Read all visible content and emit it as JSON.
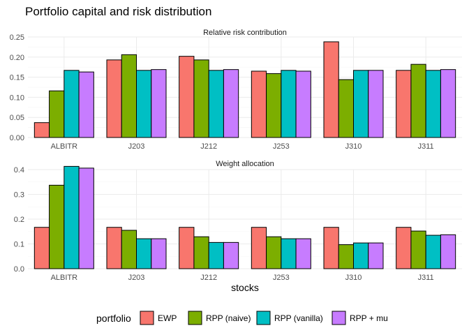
{
  "title": "Portfolio capital and risk distribution",
  "legend": {
    "title": "portfolio",
    "position": "bottom",
    "entries": [
      {
        "name": "EWP",
        "color": "#F8766D"
      },
      {
        "name": "RPP (naive)",
        "color": "#7CAE00"
      },
      {
        "name": "RPP (vanilla)",
        "color": "#00BFC4"
      },
      {
        "name": "RPP + mu",
        "color": "#C77CFF"
      }
    ]
  },
  "chart_data": [
    {
      "type": "bar",
      "facet": "Relative risk contribution",
      "categories": [
        "ALBITR",
        "J203",
        "J212",
        "J253",
        "J310",
        "J311"
      ],
      "xlabel": "",
      "ylabel": "",
      "ylim": [
        0,
        0.25
      ],
      "yticks": [
        "0.00",
        "0.05",
        "0.10",
        "0.15",
        "0.20",
        "0.25"
      ],
      "grid": true,
      "series": [
        {
          "name": "EWP",
          "values": [
            0.037,
            0.193,
            0.202,
            0.165,
            0.238,
            0.167
          ]
        },
        {
          "name": "RPP (naive)",
          "values": [
            0.116,
            0.206,
            0.193,
            0.159,
            0.144,
            0.182
          ]
        },
        {
          "name": "RPP (vanilla)",
          "values": [
            0.167,
            0.167,
            0.167,
            0.167,
            0.167,
            0.167
          ]
        },
        {
          "name": "RPP + mu",
          "values": [
            0.163,
            0.169,
            0.169,
            0.165,
            0.167,
            0.169
          ]
        }
      ]
    },
    {
      "type": "bar",
      "facet": "Weight allocation",
      "categories": [
        "ALBITR",
        "J203",
        "J212",
        "J253",
        "J310",
        "J311"
      ],
      "xlabel": "stocks",
      "ylabel": "",
      "ylim": [
        0,
        0.4
      ],
      "yticks": [
        "0.0",
        "0.1",
        "0.2",
        "0.3",
        "0.4"
      ],
      "grid": true,
      "series": [
        {
          "name": "EWP",
          "values": [
            0.167,
            0.167,
            0.167,
            0.167,
            0.167,
            0.167
          ]
        },
        {
          "name": "RPP (naive)",
          "values": [
            0.337,
            0.155,
            0.129,
            0.129,
            0.097,
            0.152
          ]
        },
        {
          "name": "RPP (vanilla)",
          "values": [
            0.413,
            0.121,
            0.106,
            0.121,
            0.104,
            0.135
          ]
        },
        {
          "name": "RPP + mu",
          "values": [
            0.406,
            0.121,
            0.106,
            0.121,
            0.104,
            0.137
          ]
        }
      ]
    }
  ]
}
